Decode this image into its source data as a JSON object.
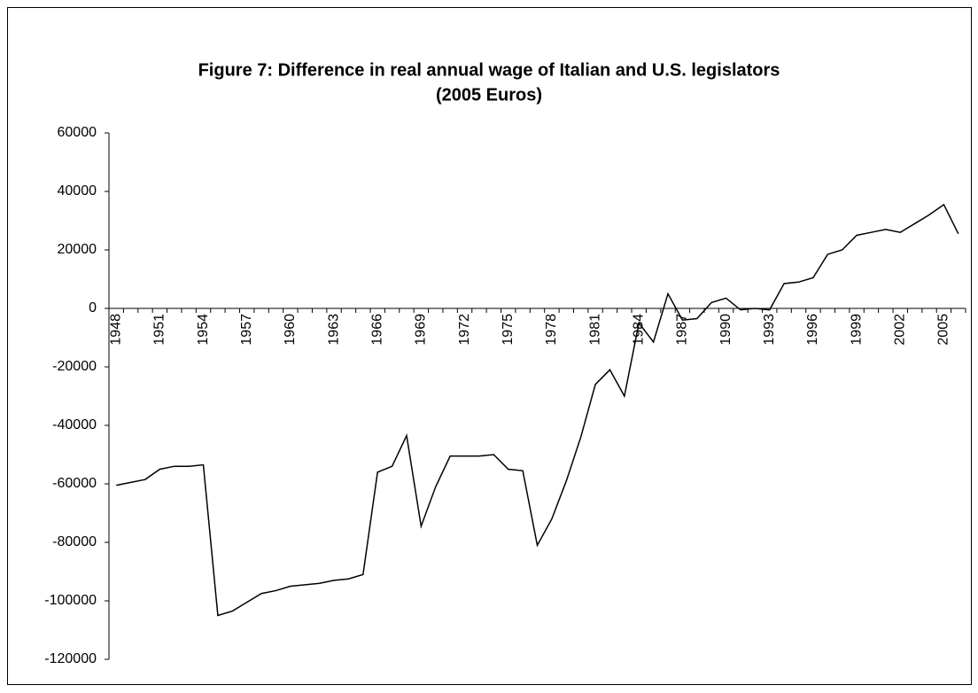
{
  "chart_data": {
    "type": "line",
    "title": [
      "Figure 7: Difference in real annual wage of Italian and U.S. legislators",
      "(2005 Euros)"
    ],
    "categories": [
      "1948",
      null,
      null,
      "1951",
      null,
      null,
      "1954",
      null,
      null,
      "1957",
      null,
      null,
      "1960",
      null,
      null,
      "1963",
      null,
      null,
      "1966",
      null,
      null,
      "1969",
      null,
      null,
      "1972",
      null,
      null,
      "1975",
      null,
      null,
      "1978",
      null,
      null,
      "1981",
      null,
      null,
      "1984",
      null,
      null,
      "1987",
      null,
      null,
      "1990",
      null,
      null,
      "1993",
      null,
      null,
      "1996",
      null,
      null,
      "1999",
      null,
      null,
      "2002",
      null,
      null,
      "2005",
      null
    ],
    "series": [
      {
        "color": "#000000",
        "values": [
          -60500,
          -59500,
          -58500,
          -55000,
          -54000,
          -54000,
          -53500,
          -105000,
          -103500,
          -100500,
          -97500,
          -96500,
          -95000,
          -94500,
          -94000,
          -93000,
          -92500,
          -91000,
          -56000,
          -54000,
          -43500,
          -74500,
          -61000,
          -50500,
          -50500,
          -50500,
          -50000,
          -55000,
          -55500,
          -81000,
          -72000,
          -59000,
          -44000,
          -26000,
          -21000,
          -30000,
          -5000,
          -11500,
          5000,
          -4000,
          -3500,
          2000,
          3500,
          -500,
          0,
          -500,
          8500,
          9000,
          10500,
          18500,
          20000,
          25000,
          26000,
          27000,
          26000,
          29000,
          32000,
          35500,
          25500
        ]
      }
    ],
    "ylim": [
      -120000,
      60000
    ],
    "yticks": [
      -120000,
      -100000,
      -80000,
      -60000,
      -40000,
      -20000,
      0,
      20000,
      40000,
      60000
    ],
    "grid": false
  }
}
